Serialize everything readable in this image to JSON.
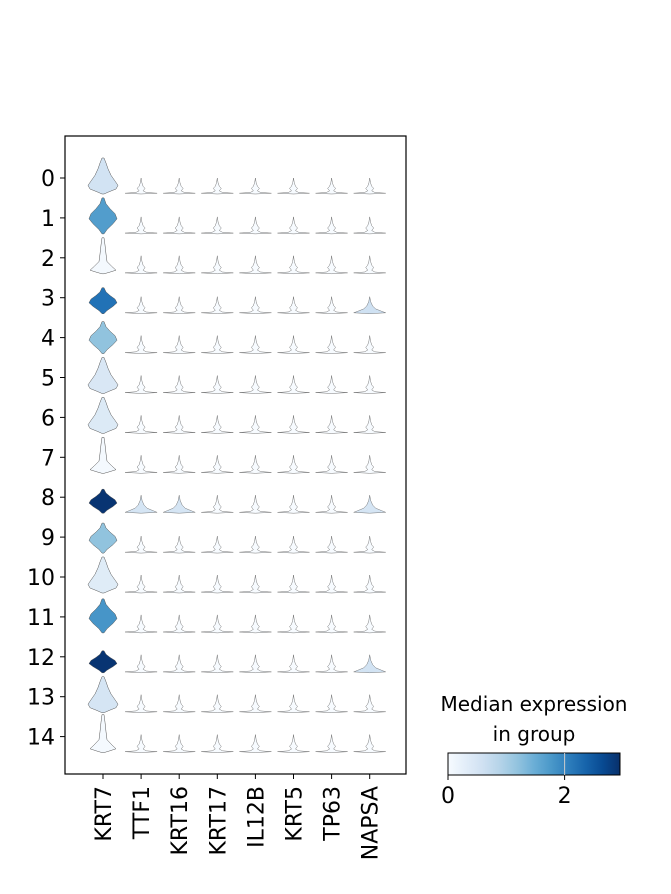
{
  "chart_data": {
    "type": "stacked-violin",
    "title": "",
    "xlabel": "",
    "ylabel": "",
    "groups": [
      "0",
      "1",
      "2",
      "3",
      "4",
      "5",
      "6",
      "7",
      "8",
      "9",
      "10",
      "11",
      "12",
      "13",
      "14"
    ],
    "genes": [
      "KRT7",
      "TTF1",
      "KRT16",
      "KRT17",
      "IL12B",
      "KRT5",
      "TP63",
      "NAPSA"
    ],
    "median_expression": [
      [
        0.55,
        0.0,
        0.0,
        0.0,
        0.0,
        0.0,
        0.0,
        0.0
      ],
      [
        1.7,
        0.0,
        0.0,
        0.0,
        0.0,
        0.0,
        0.0,
        0.0
      ],
      [
        0.05,
        0.0,
        0.0,
        0.0,
        0.0,
        0.0,
        0.0,
        0.0
      ],
      [
        2.2,
        0.0,
        0.0,
        0.0,
        0.0,
        0.0,
        0.0,
        0.6
      ],
      [
        1.2,
        0.0,
        0.0,
        0.0,
        0.0,
        0.0,
        0.0,
        0.0
      ],
      [
        0.45,
        0.0,
        0.0,
        0.0,
        0.0,
        0.0,
        0.0,
        0.0
      ],
      [
        0.4,
        0.0,
        0.0,
        0.0,
        0.0,
        0.0,
        0.0,
        0.0
      ],
      [
        0.05,
        0.0,
        0.0,
        0.0,
        0.0,
        0.0,
        0.0,
        0.0
      ],
      [
        2.9,
        0.5,
        0.5,
        0.0,
        0.0,
        0.0,
        0.0,
        0.5
      ],
      [
        1.2,
        0.0,
        0.0,
        0.0,
        0.0,
        0.0,
        0.0,
        0.0
      ],
      [
        0.35,
        0.0,
        0.0,
        0.0,
        0.0,
        0.0,
        0.0,
        0.0
      ],
      [
        1.8,
        0.0,
        0.0,
        0.0,
        0.0,
        0.0,
        0.0,
        0.0
      ],
      [
        2.9,
        0.0,
        0.0,
        0.0,
        0.0,
        0.0,
        0.0,
        0.55
      ],
      [
        0.5,
        0.0,
        0.0,
        0.0,
        0.0,
        0.0,
        0.0,
        0.0
      ],
      [
        0.05,
        0.0,
        0.0,
        0.0,
        0.0,
        0.0,
        0.0,
        0.0
      ]
    ],
    "colorbar": {
      "title": "Median expression\nin group",
      "range": [
        0,
        2.95
      ],
      "ticks": [
        0,
        2
      ],
      "tick_labels": [
        "0",
        "2"
      ],
      "colormap": "Blues"
    },
    "grid": false
  }
}
